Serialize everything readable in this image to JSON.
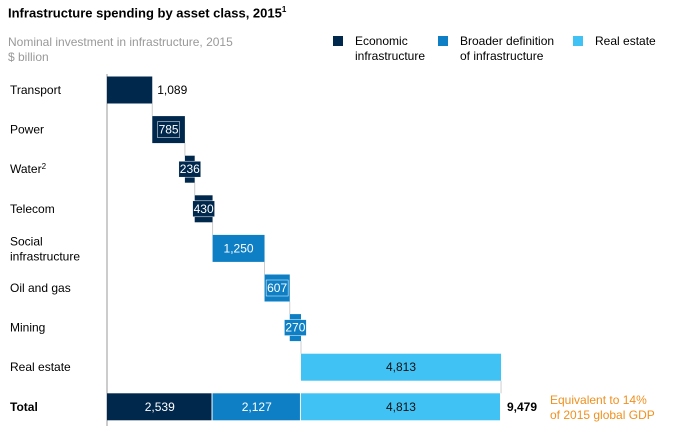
{
  "chart_data": {
    "type": "bar",
    "subtype": "waterfall",
    "title": "Infrastructure spending by asset class, 2015",
    "title_footnote": "1",
    "subtitle": "Nominal investment in infrastructure, 2015",
    "unit": "$ billion",
    "legend": [
      {
        "name": "Economic infrastructure",
        "lines": [
          "Economic",
          "infrastructure"
        ],
        "color": "#00284d"
      },
      {
        "name": "Broader definition of infrastructure",
        "lines": [
          "Broader definition",
          "of infrastructure"
        ],
        "color": "#0e7fc4"
      },
      {
        "name": "Real estate",
        "lines": [
          "Real estate"
        ],
        "color": "#40c3f4"
      }
    ],
    "legend_placement": "top-right",
    "categories": [
      {
        "label": [
          "Transport"
        ],
        "value": 1089,
        "label_text": "1,089",
        "group": 0
      },
      {
        "label": [
          "Power"
        ],
        "value": 785,
        "label_text": "785",
        "group": 0
      },
      {
        "label": [
          "Water"
        ],
        "footnote": "2",
        "value": 236,
        "label_text": "236",
        "group": 0
      },
      {
        "label": [
          "Telecom"
        ],
        "value": 430,
        "label_text": "430",
        "group": 0
      },
      {
        "label": [
          "Social",
          "infrastructure"
        ],
        "value": 1250,
        "label_text": "1,250",
        "group": 1
      },
      {
        "label": [
          "Oil and gas"
        ],
        "value": 607,
        "label_text": "607",
        "group": 1
      },
      {
        "label": [
          "Mining"
        ],
        "value": 270,
        "label_text": "270",
        "group": 1
      },
      {
        "label": [
          "Real estate"
        ],
        "value": 4813,
        "label_text": "4,813",
        "group": 2
      }
    ],
    "total": {
      "label": "Total",
      "segments": [
        {
          "value": 2539,
          "label_text": "2,539",
          "group": 0
        },
        {
          "value": 2127,
          "label_text": "2,127",
          "group": 1
        },
        {
          "value": 4813,
          "label_text": "4,813",
          "group": 2
        }
      ],
      "value": 9479,
      "label_text": "9,479"
    },
    "annotation": [
      "Equivalent to 14%",
      "of 2015 global GDP"
    ],
    "xlim": [
      0,
      9479
    ],
    "grid": false
  }
}
